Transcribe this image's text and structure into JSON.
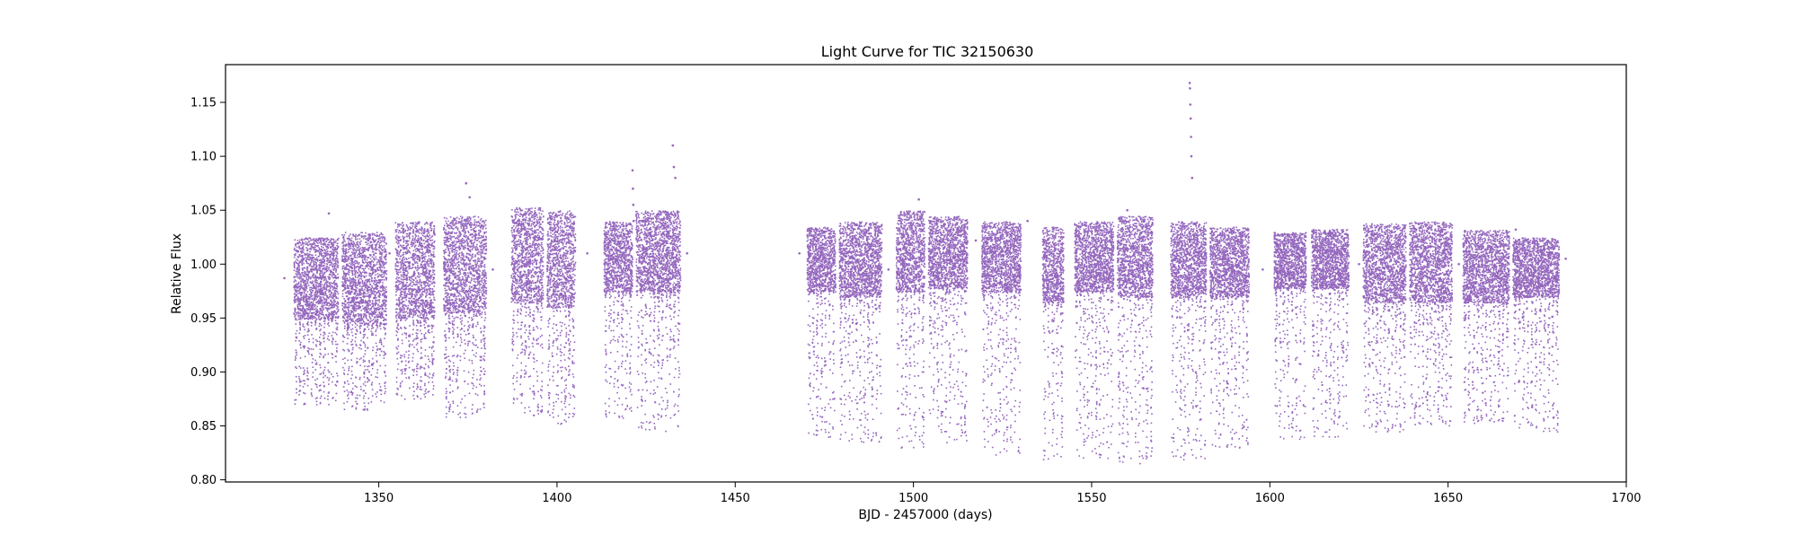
{
  "chart_data": {
    "type": "scatter",
    "title": "Light Curve for TIC 32150630",
    "xlabel": "BJD - 2457000 (days)",
    "ylabel": "Relative Flux",
    "xlim": [
      1307,
      1700
    ],
    "ylim": [
      0.798,
      1.185
    ],
    "xticks": [
      1350,
      1400,
      1450,
      1500,
      1550,
      1600,
      1650,
      1700
    ],
    "xtick_labels": [
      "1350",
      "1400",
      "1450",
      "1500",
      "1550",
      "1600",
      "1650",
      "1700"
    ],
    "yticks": [
      0.8,
      0.85,
      0.9,
      0.95,
      1.0,
      1.05,
      1.1,
      1.15
    ],
    "ytick_labels": [
      "0.80",
      "0.85",
      "0.90",
      "0.95",
      "1.00",
      "1.05",
      "1.10",
      "1.15"
    ],
    "grid": false,
    "marker_color": "#9467bd",
    "series": [
      {
        "segments": [
          {
            "x0": 1326,
            "x1": 1338.5,
            "top": 1.025,
            "core_low": 0.95,
            "tail_low": 0.87
          },
          {
            "x0": 1339.5,
            "x1": 1352,
            "top": 1.03,
            "core_low": 0.945,
            "tail_low": 0.865
          },
          {
            "x0": 1354.5,
            "x1": 1365.5,
            "top": 1.04,
            "core_low": 0.95,
            "tail_low": 0.875
          },
          {
            "x0": 1368,
            "x1": 1380,
            "top": 1.045,
            "core_low": 0.955,
            "tail_low": 0.858
          },
          {
            "x0": 1387,
            "x1": 1396,
            "top": 1.053,
            "core_low": 0.965,
            "tail_low": 0.86
          },
          {
            "x0": 1397,
            "x1": 1405,
            "top": 1.05,
            "core_low": 0.96,
            "tail_low": 0.852
          },
          {
            "x0": 1413,
            "x1": 1421,
            "top": 1.04,
            "core_low": 0.975,
            "tail_low": 0.855
          },
          {
            "x0": 1422,
            "x1": 1434.5,
            "top": 1.05,
            "core_low": 0.975,
            "tail_low": 0.845
          },
          {
            "x0": 1470,
            "x1": 1478,
            "top": 1.035,
            "core_low": 0.975,
            "tail_low": 0.84
          },
          {
            "x0": 1479,
            "x1": 1491,
            "top": 1.04,
            "core_low": 0.97,
            "tail_low": 0.835
          },
          {
            "x0": 1495,
            "x1": 1503,
            "top": 1.05,
            "core_low": 0.975,
            "tail_low": 0.83
          },
          {
            "x0": 1504,
            "x1": 1515,
            "top": 1.045,
            "core_low": 0.978,
            "tail_low": 0.835
          },
          {
            "x0": 1519,
            "x1": 1530,
            "top": 1.04,
            "core_low": 0.975,
            "tail_low": 0.82
          },
          {
            "x0": 1536,
            "x1": 1542,
            "top": 1.035,
            "core_low": 0.965,
            "tail_low": 0.818
          },
          {
            "x0": 1545,
            "x1": 1556,
            "top": 1.04,
            "core_low": 0.975,
            "tail_low": 0.82
          },
          {
            "x0": 1557,
            "x1": 1567,
            "top": 1.045,
            "core_low": 0.97,
            "tail_low": 0.815
          },
          {
            "x0": 1572,
            "x1": 1582,
            "top": 1.04,
            "core_low": 0.97,
            "tail_low": 0.818
          },
          {
            "x0": 1583,
            "x1": 1594,
            "top": 1.035,
            "core_low": 0.97,
            "tail_low": 0.83
          },
          {
            "x0": 1601,
            "x1": 1610,
            "top": 1.03,
            "core_low": 0.978,
            "tail_low": 0.838
          },
          {
            "x0": 1611.5,
            "x1": 1622,
            "top": 1.033,
            "core_low": 0.978,
            "tail_low": 0.84
          },
          {
            "x0": 1626,
            "x1": 1638,
            "top": 1.038,
            "core_low": 0.965,
            "tail_low": 0.845
          },
          {
            "x0": 1639,
            "x1": 1651,
            "top": 1.04,
            "core_low": 0.965,
            "tail_low": 0.85
          },
          {
            "x0": 1654,
            "x1": 1667,
            "top": 1.032,
            "core_low": 0.965,
            "tail_low": 0.85
          },
          {
            "x0": 1668,
            "x1": 1681,
            "top": 1.025,
            "core_low": 0.97,
            "tail_low": 0.845
          }
        ],
        "outliers": [
          {
            "x": 1323.5,
            "y": 0.987
          },
          {
            "x": 1336,
            "y": 1.047
          },
          {
            "x": 1353,
            "y": 1.01
          },
          {
            "x": 1374.5,
            "y": 1.075
          },
          {
            "x": 1375.5,
            "y": 1.062
          },
          {
            "x": 1382,
            "y": 0.995
          },
          {
            "x": 1408.5,
            "y": 1.01
          },
          {
            "x": 1421.2,
            "y": 1.087
          },
          {
            "x": 1421.3,
            "y": 1.07
          },
          {
            "x": 1421.4,
            "y": 1.055
          },
          {
            "x": 1421.5,
            "y": 1.04
          },
          {
            "x": 1432.5,
            "y": 1.11
          },
          {
            "x": 1432.8,
            "y": 1.09
          },
          {
            "x": 1433.2,
            "y": 1.08
          },
          {
            "x": 1436.5,
            "y": 1.01
          },
          {
            "x": 1468,
            "y": 1.01
          },
          {
            "x": 1493,
            "y": 0.995
          },
          {
            "x": 1501.5,
            "y": 1.06
          },
          {
            "x": 1517.5,
            "y": 1.022
          },
          {
            "x": 1532,
            "y": 1.04
          },
          {
            "x": 1560,
            "y": 1.05
          },
          {
            "x": 1577.5,
            "y": 1.168
          },
          {
            "x": 1577.6,
            "y": 1.163
          },
          {
            "x": 1577.7,
            "y": 1.148
          },
          {
            "x": 1577.8,
            "y": 1.135
          },
          {
            "x": 1577.9,
            "y": 1.118
          },
          {
            "x": 1578,
            "y": 1.1
          },
          {
            "x": 1578.2,
            "y": 1.08
          },
          {
            "x": 1598,
            "y": 0.995
          },
          {
            "x": 1625,
            "y": 1.0
          },
          {
            "x": 1653,
            "y": 1.0
          },
          {
            "x": 1669,
            "y": 1.032
          },
          {
            "x": 1683,
            "y": 1.005
          }
        ]
      }
    ]
  }
}
